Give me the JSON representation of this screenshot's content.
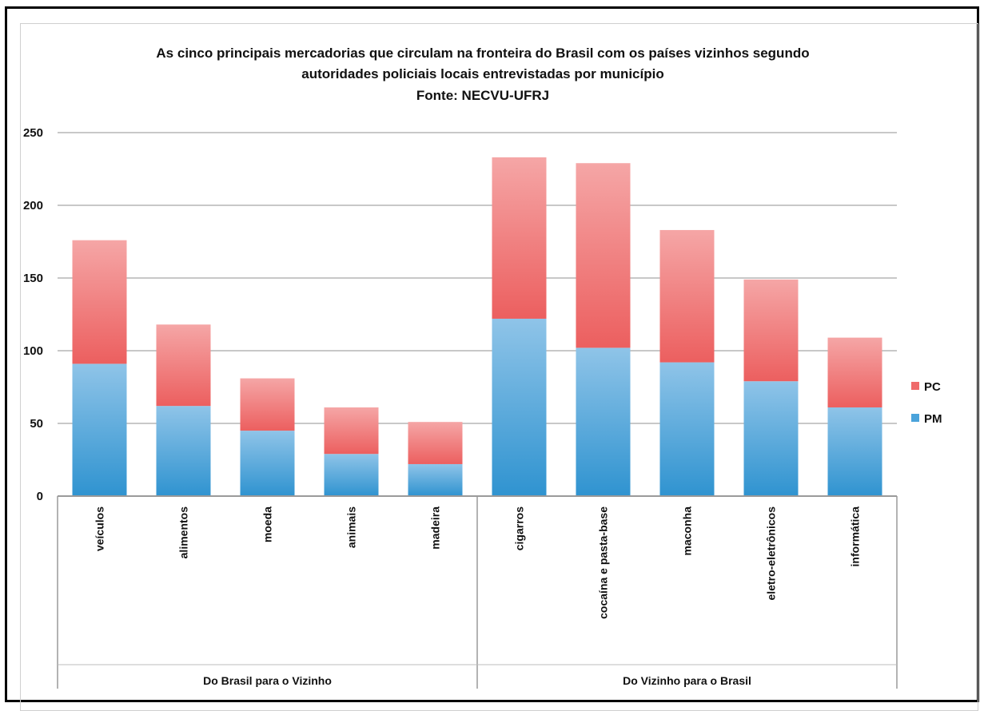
{
  "chart_data": {
    "type": "bar",
    "stacked": true,
    "title_lines": [
      "As cinco principais mercadorias que circulam na fronteira do Brasil com os países vizinhos segundo",
      "autoridades policiais locais entrevistadas por município",
      "Fonte: NECVU-UFRJ"
    ],
    "categories": [
      "veículos",
      "alimentos",
      "moeda",
      "animais",
      "madeira",
      "cigarros",
      "cocaína e pasta-base",
      "maconha",
      "eletro-eletrônicos",
      "informática"
    ],
    "groups": [
      {
        "label": "Do Brasil para o Vizinho",
        "count": 5
      },
      {
        "label": "Do Vizinho para o Brasil",
        "count": 5
      }
    ],
    "series": [
      {
        "name": "PM",
        "color": "#4aa3db",
        "values": [
          91,
          62,
          45,
          29,
          22,
          122,
          102,
          92,
          79,
          61
        ]
      },
      {
        "name": "PC",
        "color": "#ef6b6b",
        "values": [
          85,
          56,
          36,
          32,
          29,
          111,
          127,
          91,
          70,
          48
        ]
      }
    ],
    "legend": [
      "PC",
      "PM"
    ],
    "legend_position": "right",
    "ylim": [
      0,
      250
    ],
    "yticks": [
      "0",
      "50",
      "100",
      "150",
      "200",
      "250"
    ],
    "grid": true
  }
}
